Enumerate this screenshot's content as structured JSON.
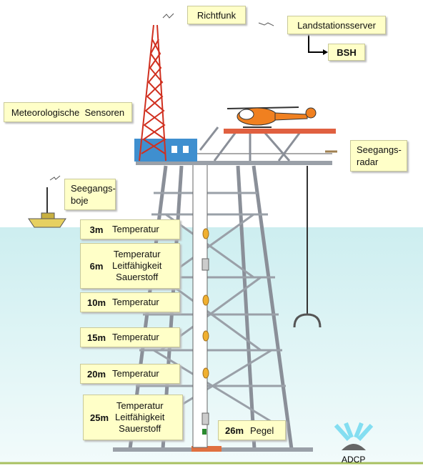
{
  "labels": {
    "richtfunk": "Richtfunk",
    "landstation": "Landstationsserver",
    "bsh": "BSH",
    "meteo": "Meteorologische  Sensoren",
    "seegangsradar": [
      "Seegangs-",
      "radar"
    ],
    "seegangsboje": [
      "Seegangs-",
      "boje"
    ],
    "adcp": "ADCP"
  },
  "depths": [
    {
      "depth": "3m",
      "params": [
        "Temperatur"
      ]
    },
    {
      "depth": "6m",
      "params": [
        "Temperatur",
        "Leitfähigkeit",
        "Sauerstoff"
      ]
    },
    {
      "depth": "10m",
      "params": [
        "Temperatur"
      ]
    },
    {
      "depth": "15m",
      "params": [
        "Temperatur"
      ]
    },
    {
      "depth": "20m",
      "params": [
        "Temperatur"
      ]
    },
    {
      "depth": "25m",
      "params": [
        "Temperatur",
        "Leitfähigkeit",
        "Sauerstoff"
      ]
    }
  ],
  "pegel": {
    "depth": "26m",
    "label": "Pegel"
  }
}
